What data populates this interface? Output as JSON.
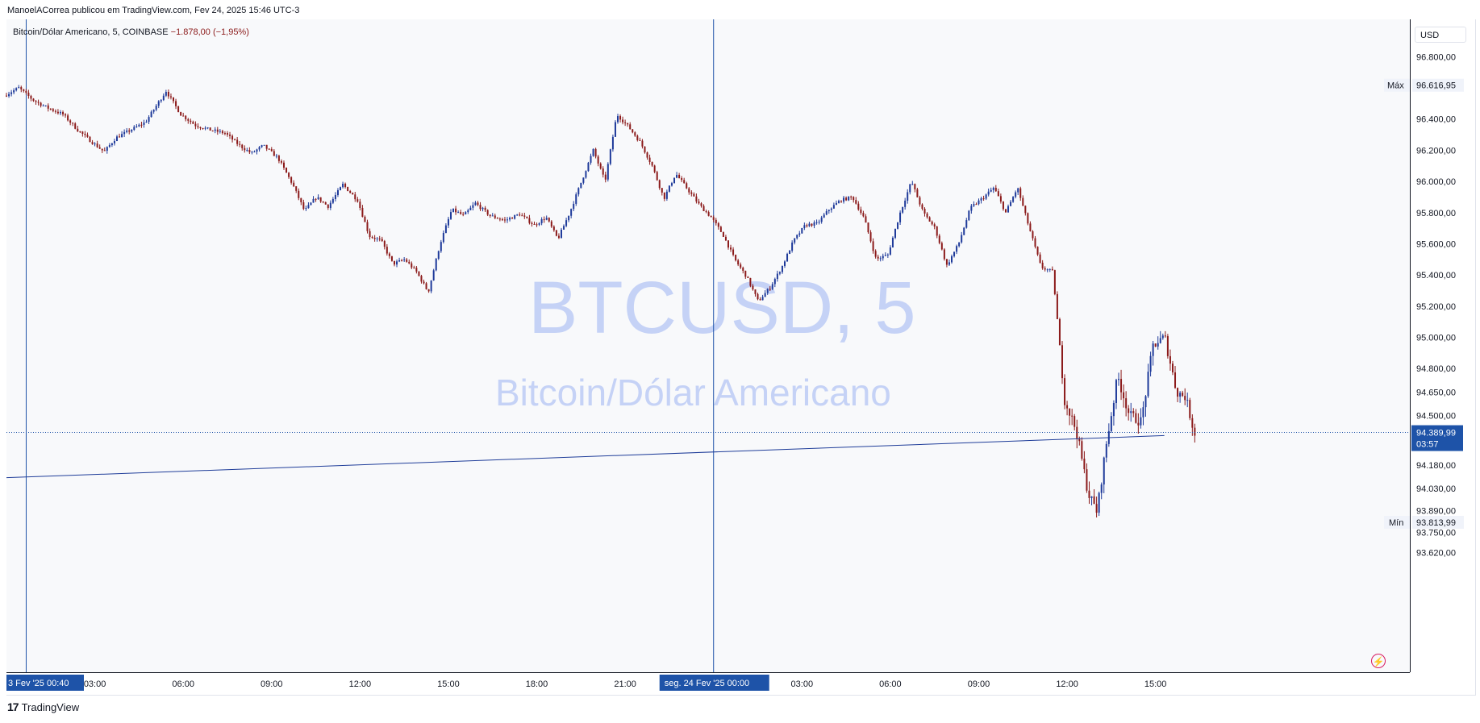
{
  "header": {
    "publisher": "ManoelACorrea publicou em TradingView.com, Fev 24, 2025 15:46 UTC-3"
  },
  "legend": {
    "symbol": "Bitcoin/Dólar Americano, 5, COINBASE",
    "change": "−1.878,00 (−1,95%)"
  },
  "watermark": {
    "title": "BTCUSD, 5",
    "subtitle": "Bitcoin/Dólar Americano"
  },
  "price_axis": {
    "currency": "USD",
    "max_label": "Máx",
    "max_value": "96.616,95",
    "min_label": "Mín",
    "min_value": "93.813,99",
    "last_price": "94.389,99",
    "countdown": "03:57"
  },
  "time_axis": {
    "start_label": "3 Fev '25   00:40",
    "day_label": "seg. 24 Fev '25   00:00"
  },
  "footer": {
    "brand": "TradingView"
  },
  "colors": {
    "up": "#1e3a9a",
    "down": "#8b1a1a",
    "line": "#1f3d99",
    "accent": "#1e53a8",
    "watermark": "#7c9ae8"
  },
  "chart_data": {
    "type": "candlestick",
    "title": "",
    "series_name": "BTCUSD",
    "y_ticks": [
      96800,
      96400,
      96200,
      96000,
      95800,
      95600,
      95400,
      95200,
      95000,
      94800,
      94650,
      94500,
      94180,
      94030,
      93890,
      93750,
      93620
    ],
    "y_tick_labels": [
      "96.800,00",
      "96.400,00",
      "96.200,00",
      "96.000,00",
      "95.800,00",
      "95.600,00",
      "95.400,00",
      "95.200,00",
      "95.000,00",
      "94.800,00",
      "94.650,00",
      "94.500,00",
      "94.180,00",
      "94.030,00",
      "93.890,00",
      "93.750,00",
      "93.620,00"
    ],
    "x_tick_labels": [
      "03:00",
      "06:00",
      "09:00",
      "12:00",
      "15:00",
      "18:00",
      "21:00",
      "03:00",
      "06:00",
      "09:00",
      "12:00",
      "15:00"
    ],
    "x_tick_hours": [
      3,
      6,
      9,
      12,
      15,
      18,
      21,
      27,
      30,
      33,
      36,
      39
    ],
    "start_hour": 0.67,
    "vertical_markers_hours": [
      0.67,
      24
    ],
    "trend_line": {
      "start": [
        0,
        94100
      ],
      "end": [
        39.3,
        94370
      ]
    },
    "last_price": 94389.99,
    "max": 96616.95,
    "min": 93813.99,
    "price_path": [
      [
        0.0,
        96550
      ],
      [
        0.5,
        96600
      ],
      [
        1.0,
        96520
      ],
      [
        1.5,
        96470
      ],
      [
        2.0,
        96430
      ],
      [
        2.5,
        96330
      ],
      [
        3.0,
        96250
      ],
      [
        3.4,
        96190
      ],
      [
        3.8,
        96280
      ],
      [
        4.3,
        96330
      ],
      [
        4.8,
        96380
      ],
      [
        5.5,
        96580
      ],
      [
        6.0,
        96430
      ],
      [
        6.5,
        96360
      ],
      [
        7.0,
        96330
      ],
      [
        7.5,
        96310
      ],
      [
        8.0,
        96230
      ],
      [
        8.4,
        96180
      ],
      [
        8.8,
        96230
      ],
      [
        9.3,
        96150
      ],
      [
        9.8,
        95980
      ],
      [
        10.2,
        95810
      ],
      [
        10.6,
        95900
      ],
      [
        11.0,
        95840
      ],
      [
        11.5,
        95980
      ],
      [
        12.0,
        95880
      ],
      [
        12.4,
        95650
      ],
      [
        12.8,
        95620
      ],
      [
        13.2,
        95470
      ],
      [
        13.6,
        95500
      ],
      [
        14.0,
        95420
      ],
      [
        14.4,
        95290
      ],
      [
        14.8,
        95600
      ],
      [
        15.2,
        95820
      ],
      [
        15.6,
        95780
      ],
      [
        16.0,
        95860
      ],
      [
        16.5,
        95780
      ],
      [
        17.0,
        95750
      ],
      [
        17.5,
        95790
      ],
      [
        18.0,
        95720
      ],
      [
        18.4,
        95770
      ],
      [
        18.8,
        95630
      ],
      [
        19.2,
        95800
      ],
      [
        19.6,
        96000
      ],
      [
        20.0,
        96200
      ],
      [
        20.4,
        96000
      ],
      [
        20.8,
        96430
      ],
      [
        21.2,
        96350
      ],
      [
        21.6,
        96250
      ],
      [
        22.0,
        96100
      ],
      [
        22.4,
        95890
      ],
      [
        22.8,
        96050
      ],
      [
        23.2,
        95950
      ],
      [
        23.6,
        95850
      ],
      [
        24.0,
        95770
      ],
      [
        24.4,
        95660
      ],
      [
        24.8,
        95500
      ],
      [
        25.2,
        95390
      ],
      [
        25.6,
        95230
      ],
      [
        26.0,
        95320
      ],
      [
        26.4,
        95450
      ],
      [
        26.8,
        95620
      ],
      [
        27.2,
        95720
      ],
      [
        27.6,
        95730
      ],
      [
        28.0,
        95820
      ],
      [
        28.4,
        95880
      ],
      [
        28.8,
        95900
      ],
      [
        29.2,
        95760
      ],
      [
        29.6,
        95500
      ],
      [
        30.0,
        95530
      ],
      [
        30.4,
        95790
      ],
      [
        30.8,
        96000
      ],
      [
        31.2,
        95800
      ],
      [
        31.6,
        95700
      ],
      [
        32.0,
        95460
      ],
      [
        32.4,
        95600
      ],
      [
        32.8,
        95830
      ],
      [
        33.2,
        95890
      ],
      [
        33.6,
        95960
      ],
      [
        34.0,
        95800
      ],
      [
        34.4,
        95960
      ],
      [
        34.8,
        95700
      ],
      [
        35.2,
        95450
      ],
      [
        35.6,
        95420
      ],
      [
        36.0,
        94600
      ],
      [
        36.4,
        94400
      ],
      [
        36.8,
        94000
      ],
      [
        37.1,
        93880
      ],
      [
        37.4,
        94300
      ],
      [
        37.8,
        94750
      ],
      [
        38.2,
        94500
      ],
      [
        38.6,
        94460
      ],
      [
        39.0,
        94950
      ],
      [
        39.4,
        95000
      ],
      [
        39.8,
        94650
      ],
      [
        40.1,
        94620
      ],
      [
        40.4,
        94390
      ]
    ]
  }
}
